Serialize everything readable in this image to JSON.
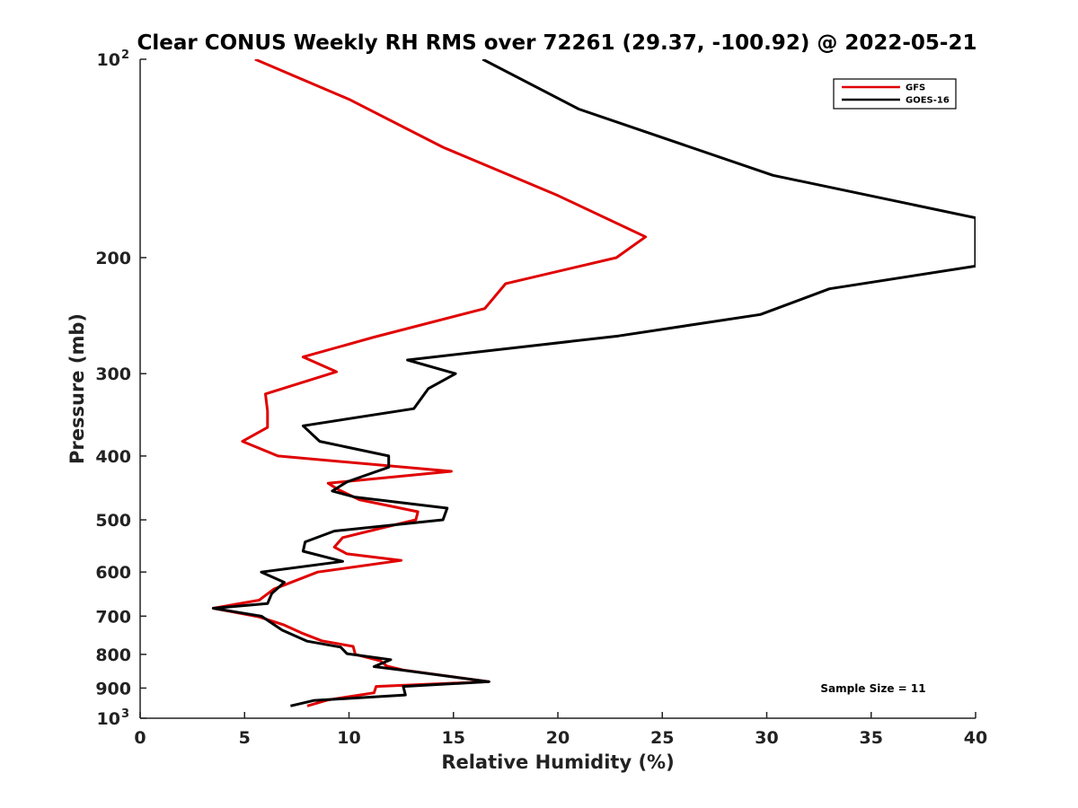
{
  "chart_data": {
    "type": "line",
    "title": "Clear CONUS Weekly RH RMS over 72261 (29.37, -100.92) @ 2022-05-21",
    "xlabel": "Relative Humidity (%)",
    "ylabel": "Pressure (mb)",
    "xlim": [
      0,
      40
    ],
    "ylim": [
      1000,
      100
    ],
    "y_scale": "log",
    "y_reversed": true,
    "x_ticks": [
      0,
      5,
      10,
      15,
      20,
      25,
      30,
      35,
      40
    ],
    "x_tick_labels": [
      "0",
      "5",
      "10",
      "15",
      "20",
      "25",
      "30",
      "35",
      "40"
    ],
    "y_ticks": [
      {
        "value": 100,
        "base": "10",
        "exp": "2"
      },
      {
        "value": 200,
        "label": "200"
      },
      {
        "value": 300,
        "label": "300"
      },
      {
        "value": 400,
        "label": "400"
      },
      {
        "value": 500,
        "label": "500"
      },
      {
        "value": 600,
        "label": "600"
      },
      {
        "value": 700,
        "label": "700"
      },
      {
        "value": 800,
        "label": "800"
      },
      {
        "value": 900,
        "label": "900"
      },
      {
        "value": 1000,
        "base": "10",
        "exp": "3"
      }
    ],
    "grid": false,
    "legend_position": "top-right",
    "annotation": "Sample Size = 11",
    "series": [
      {
        "name": "GFS",
        "color": "#e00000",
        "points": [
          [
            5.5,
            100
          ],
          [
            10,
            115
          ],
          [
            14.5,
            136
          ],
          [
            20,
            161
          ],
          [
            24.2,
            186
          ],
          [
            22.8,
            200
          ],
          [
            17.5,
            219
          ],
          [
            16.5,
            239
          ],
          [
            11.2,
            264
          ],
          [
            7.8,
            283
          ],
          [
            9.4,
            298
          ],
          [
            6,
            322
          ],
          [
            6.1,
            342
          ],
          [
            6.1,
            362
          ],
          [
            4.9,
            380
          ],
          [
            6.6,
            400
          ],
          [
            14.9,
            422
          ],
          [
            9,
            440
          ],
          [
            9.5,
            450
          ],
          [
            10.5,
            466
          ],
          [
            13.3,
            486
          ],
          [
            13.2,
            500
          ],
          [
            11.5,
            515
          ],
          [
            9.7,
            532
          ],
          [
            9.3,
            550
          ],
          [
            9.9,
            563
          ],
          [
            12.5,
            576
          ],
          [
            8.5,
            600
          ],
          [
            6.4,
            637
          ],
          [
            5.7,
            662
          ],
          [
            3.5,
            681
          ],
          [
            5.7,
            702
          ],
          [
            6.9,
            722
          ],
          [
            7.8,
            744
          ],
          [
            8.7,
            763
          ],
          [
            10.2,
            778
          ],
          [
            10.3,
            800
          ],
          [
            11.5,
            818
          ],
          [
            11.8,
            833
          ],
          [
            12.6,
            845
          ],
          [
            16.7,
            880
          ],
          [
            11.3,
            895
          ],
          [
            11.2,
            915
          ],
          [
            9,
            938
          ],
          [
            8,
            958
          ]
        ]
      },
      {
        "name": "GOES-16",
        "color": "#000000",
        "points": [
          [
            16.4,
            100
          ],
          [
            21,
            119
          ],
          [
            30.3,
            150
          ],
          [
            40,
            174
          ],
          [
            40,
            206
          ],
          [
            33,
            223
          ],
          [
            29.7,
            244
          ],
          [
            22.9,
            263
          ],
          [
            12.8,
            286
          ],
          [
            15.1,
            300
          ],
          [
            13.8,
            316
          ],
          [
            13.1,
            339
          ],
          [
            7.8,
            360
          ],
          [
            8.6,
            380
          ],
          [
            11.9,
            400
          ],
          [
            11.9,
            416
          ],
          [
            10.6,
            430
          ],
          [
            9.9,
            438
          ],
          [
            9.2,
            452
          ],
          [
            10.3,
            462
          ],
          [
            14.7,
            480
          ],
          [
            14.5,
            500
          ],
          [
            9.3,
            520
          ],
          [
            7.9,
            540
          ],
          [
            7.8,
            558
          ],
          [
            9.7,
            578
          ],
          [
            5.8,
            600
          ],
          [
            6.9,
            622
          ],
          [
            6.3,
            647
          ],
          [
            6.1,
            670
          ],
          [
            3.5,
            681
          ],
          [
            5.8,
            700
          ],
          [
            6.8,
            735
          ],
          [
            8,
            764
          ],
          [
            9.6,
            780
          ],
          [
            9.9,
            798
          ],
          [
            12,
            815
          ],
          [
            11.2,
            835
          ],
          [
            12.5,
            845
          ],
          [
            16.7,
            880
          ],
          [
            12.6,
            895
          ],
          [
            12.7,
            922
          ],
          [
            8.3,
            940
          ],
          [
            7.2,
            958
          ]
        ]
      }
    ]
  }
}
